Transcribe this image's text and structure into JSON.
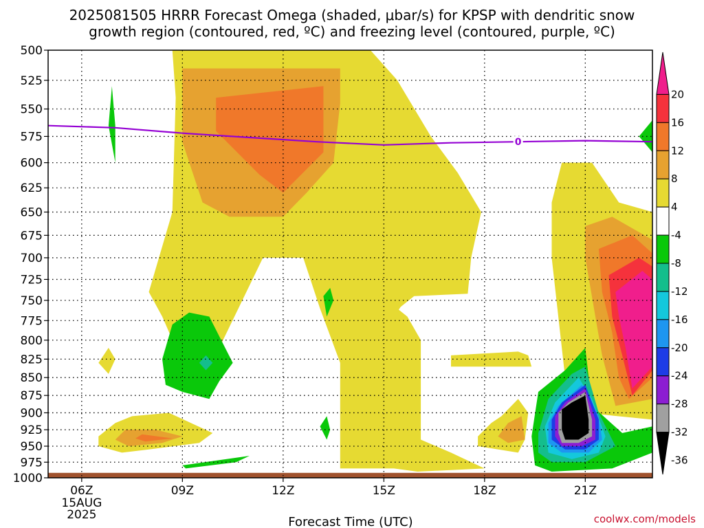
{
  "chart_data": {
    "type": "heatmap",
    "title": [
      "2025081505 HRRR Forecast Omega (shaded, μbar/s) for KPSP with dendritic snow",
      "growth region (contoured, red, ºC) and freezing level (contoured, purple, ºC)"
    ],
    "xlabel": "Forecast Time (UTC)",
    "ylabel": "",
    "y_scale": "log-pressure (hPa, inverted)",
    "y_ticks": [
      500,
      525,
      550,
      575,
      600,
      625,
      650,
      675,
      700,
      725,
      750,
      775,
      800,
      825,
      850,
      875,
      900,
      925,
      950,
      975,
      1000
    ],
    "y_lim": [
      1000,
      500
    ],
    "x_ticks": [
      {
        "hour": 6,
        "label": "06Z",
        "sub": [
          "15AUG",
          "2025"
        ]
      },
      {
        "hour": 9,
        "label": "09Z"
      },
      {
        "hour": 12,
        "label": "12Z"
      },
      {
        "hour": 15,
        "label": "15Z"
      },
      {
        "hour": 18,
        "label": "18Z"
      },
      {
        "hour": 21,
        "label": "21Z"
      }
    ],
    "x_lim": [
      5,
      23
    ],
    "grid": true,
    "colorbar": {
      "placement": "right",
      "labels": [
        "20",
        "16",
        "12",
        "8",
        "4",
        "-4",
        "-8",
        "-12",
        "-16",
        "-20",
        "-24",
        "-28",
        "-32",
        "-36"
      ],
      "colors": [
        "#f01e8c",
        "#f5323c",
        "#f0782a",
        "#e6a230",
        "#e6da32",
        "#ffffff",
        "#0ac80a",
        "#14be8c",
        "#14c8dc",
        "#1e96f0",
        "#1e3ce6",
        "#8c1ed2",
        "#a0a0a0",
        "#000000"
      ]
    },
    "freezing_level": {
      "label": "0",
      "color": "#9400d3",
      "points": [
        [
          5,
          565
        ],
        [
          7,
          567
        ],
        [
          9,
          572
        ],
        [
          11,
          576
        ],
        [
          13,
          580
        ],
        [
          15,
          583
        ],
        [
          17,
          581
        ],
        [
          19,
          580
        ],
        [
          21,
          579
        ],
        [
          23,
          580
        ]
      ]
    },
    "omega_regions": [
      {
        "level": "4",
        "color": "#e6da32",
        "points": [
          [
            8.7,
            500
          ],
          [
            14.6,
            500
          ],
          [
            15.4,
            525
          ],
          [
            16.4,
            575
          ],
          [
            17.2,
            610
          ],
          [
            17.9,
            650
          ],
          [
            17.6,
            700
          ],
          [
            17.5,
            742
          ],
          [
            15.9,
            745
          ],
          [
            15.5,
            758
          ],
          [
            15.3,
            770
          ],
          [
            14.3,
            790
          ],
          [
            13.7,
            830
          ],
          [
            13.1,
            760
          ],
          [
            12.6,
            700
          ],
          [
            12.0,
            700
          ],
          [
            11.4,
            700
          ],
          [
            10.1,
            810
          ],
          [
            9.4,
            840
          ],
          [
            9.0,
            830
          ],
          [
            8.4,
            770
          ],
          [
            8.0,
            740
          ],
          [
            8.7,
            650
          ],
          [
            8.8,
            540
          ]
        ]
      },
      {
        "level": "4",
        "color": "#e6da32",
        "points": [
          [
            13.7,
            780
          ],
          [
            15.4,
            760
          ],
          [
            15.7,
            770
          ],
          [
            16.1,
            800
          ],
          [
            16.1,
            940
          ],
          [
            17.0,
            960
          ],
          [
            18.0,
            985
          ],
          [
            16.0,
            990
          ],
          [
            15.3,
            985
          ],
          [
            13.7,
            985
          ]
        ]
      },
      {
        "level": "4",
        "color": "#e6da32",
        "points": [
          [
            17.0,
            835
          ],
          [
            19.4,
            835
          ],
          [
            19.3,
            820
          ],
          [
            19.0,
            815
          ],
          [
            17.0,
            820
          ]
        ]
      },
      {
        "level": "8",
        "color": "#e6a230",
        "points": [
          [
            9.0,
            515
          ],
          [
            13.7,
            515
          ],
          [
            13.7,
            545
          ],
          [
            13.5,
            600
          ],
          [
            12.7,
            630
          ],
          [
            12.0,
            655
          ],
          [
            10.4,
            655
          ],
          [
            9.6,
            640
          ],
          [
            9.0,
            580
          ]
        ]
      },
      {
        "level": "12",
        "color": "#f0782a",
        "points": [
          [
            10.0,
            540
          ],
          [
            13.2,
            530
          ],
          [
            13.2,
            590
          ],
          [
            12.0,
            630
          ],
          [
            11.3,
            612
          ],
          [
            10.0,
            570
          ]
        ]
      },
      {
        "level": "4",
        "color": "#e6da32",
        "points": [
          [
            6.5,
            935
          ],
          [
            7.0,
            915
          ],
          [
            7.5,
            905
          ],
          [
            8.6,
            900
          ],
          [
            9.9,
            930
          ],
          [
            9.5,
            945
          ],
          [
            8.0,
            955
          ],
          [
            7.2,
            960
          ],
          [
            6.5,
            950
          ]
        ]
      },
      {
        "level": "8",
        "color": "#e6a230",
        "points": [
          [
            7.0,
            940
          ],
          [
            7.3,
            925
          ],
          [
            8.2,
            925
          ],
          [
            9.0,
            935
          ],
          [
            8.4,
            945
          ],
          [
            7.4,
            950
          ]
        ]
      },
      {
        "level": "12",
        "color": "#f0782a",
        "points": [
          [
            7.6,
            938
          ],
          [
            7.8,
            932
          ],
          [
            8.7,
            938
          ],
          [
            7.9,
            943
          ]
        ]
      },
      {
        "level": "4",
        "color": "#e6da32",
        "points": [
          [
            6.5,
            830
          ],
          [
            6.8,
            810
          ],
          [
            7.0,
            825
          ],
          [
            6.8,
            845
          ]
        ]
      },
      {
        "level": "-4",
        "color": "#0ac80a",
        "points": [
          [
            6.9,
            530
          ],
          [
            7.0,
            565
          ],
          [
            7.0,
            600
          ],
          [
            6.8,
            565
          ]
        ]
      },
      {
        "level": "-4",
        "color": "#0ac80a",
        "points": [
          [
            8.4,
            825
          ],
          [
            8.7,
            780
          ],
          [
            9.2,
            765
          ],
          [
            9.8,
            770
          ],
          [
            10.5,
            830
          ],
          [
            10.1,
            855
          ],
          [
            9.8,
            880
          ],
          [
            9.0,
            870
          ],
          [
            8.5,
            860
          ]
        ]
      },
      {
        "level": "-8",
        "color": "#14be8c",
        "points": [
          [
            9.5,
            830
          ],
          [
            9.7,
            820
          ],
          [
            9.9,
            830
          ],
          [
            9.7,
            840
          ]
        ]
      },
      {
        "level": "-4",
        "color": "#0ac80a",
        "points": [
          [
            13.2,
            745
          ],
          [
            13.4,
            735
          ],
          [
            13.5,
            750
          ],
          [
            13.3,
            770
          ]
        ]
      },
      {
        "level": "-4",
        "color": "#0ac80a",
        "points": [
          [
            13.1,
            920
          ],
          [
            13.3,
            905
          ],
          [
            13.4,
            925
          ],
          [
            13.3,
            940
          ]
        ]
      },
      {
        "level": "-4",
        "color": "#0ac80a",
        "points": [
          [
            9.0,
            980
          ],
          [
            11.0,
            965
          ],
          [
            10.6,
            975
          ],
          [
            9.1,
            985
          ]
        ]
      },
      {
        "level": "4",
        "color": "#e6da32",
        "points": [
          [
            20.3,
            600
          ],
          [
            21.2,
            600
          ],
          [
            22.0,
            640
          ],
          [
            23.0,
            650
          ],
          [
            23.0,
            910
          ],
          [
            21.0,
            900
          ],
          [
            20.6,
            880
          ],
          [
            20.4,
            850
          ],
          [
            20.0,
            700
          ],
          [
            20.0,
            640
          ]
        ]
      },
      {
        "level": "8",
        "color": "#e6a230",
        "points": [
          [
            21.0,
            665
          ],
          [
            21.8,
            655
          ],
          [
            23.0,
            680
          ],
          [
            23.0,
            880
          ],
          [
            21.9,
            890
          ],
          [
            21.5,
            820
          ],
          [
            21.3,
            770
          ],
          [
            21.0,
            700
          ]
        ]
      },
      {
        "level": "12",
        "color": "#f0782a",
        "points": [
          [
            21.4,
            690
          ],
          [
            22.4,
            675
          ],
          [
            23.0,
            695
          ],
          [
            23.0,
            850
          ],
          [
            22.3,
            880
          ],
          [
            22.0,
            850
          ],
          [
            21.8,
            790
          ],
          [
            21.5,
            740
          ]
        ]
      },
      {
        "level": "16",
        "color": "#f5323c",
        "points": [
          [
            21.7,
            720
          ],
          [
            22.6,
            700
          ],
          [
            23.0,
            710
          ],
          [
            23.0,
            840
          ],
          [
            22.4,
            875
          ],
          [
            22.1,
            820
          ],
          [
            21.8,
            770
          ]
        ]
      },
      {
        "level": "20",
        "color": "#f01e8c",
        "points": [
          [
            21.9,
            740
          ],
          [
            22.7,
            715
          ],
          [
            23.0,
            725
          ],
          [
            23.0,
            835
          ],
          [
            22.4,
            865
          ],
          [
            22.2,
            810
          ],
          [
            22.0,
            770
          ]
        ]
      },
      {
        "level": "4",
        "color": "#e6da32",
        "points": [
          [
            17.8,
            935
          ],
          [
            18.2,
            915
          ],
          [
            18.5,
            905
          ],
          [
            19.0,
            880
          ],
          [
            19.3,
            900
          ],
          [
            19.2,
            940
          ],
          [
            19.0,
            960
          ],
          [
            17.8,
            950
          ]
        ]
      },
      {
        "level": "8",
        "color": "#e6a230",
        "points": [
          [
            18.4,
            935
          ],
          [
            18.7,
            915
          ],
          [
            19.1,
            905
          ],
          [
            19.2,
            940
          ],
          [
            18.7,
            945
          ]
        ]
      },
      {
        "level": "-4",
        "color": "#0ac80a",
        "points": [
          [
            19.4,
            935
          ],
          [
            19.6,
            870
          ],
          [
            20.4,
            840
          ],
          [
            21.0,
            810
          ],
          [
            21.2,
            890
          ],
          [
            22.1,
            930
          ],
          [
            23.0,
            920
          ],
          [
            23.0,
            960
          ],
          [
            21.8,
            985
          ],
          [
            20.0,
            990
          ],
          [
            19.5,
            980
          ]
        ]
      },
      {
        "level": "-8",
        "color": "#14be8c",
        "points": [
          [
            19.6,
            930
          ],
          [
            19.9,
            880
          ],
          [
            20.6,
            845
          ],
          [
            21.0,
            835
          ],
          [
            21.4,
            900
          ],
          [
            21.9,
            950
          ],
          [
            21.0,
            975
          ],
          [
            20.0,
            975
          ],
          [
            19.6,
            960
          ]
        ]
      },
      {
        "level": "-12",
        "color": "#14c8dc",
        "points": [
          [
            19.8,
            920
          ],
          [
            20.1,
            885
          ],
          [
            20.8,
            850
          ],
          [
            21.2,
            880
          ],
          [
            21.6,
            935
          ],
          [
            21.4,
            960
          ],
          [
            20.6,
            970
          ],
          [
            19.9,
            960
          ]
        ]
      },
      {
        "level": "-16",
        "color": "#1e96f0",
        "points": [
          [
            19.9,
            915
          ],
          [
            20.2,
            890
          ],
          [
            20.9,
            860
          ],
          [
            21.4,
            905
          ],
          [
            21.5,
            940
          ],
          [
            21.1,
            960
          ],
          [
            20.3,
            960
          ],
          [
            19.9,
            945
          ]
        ]
      },
      {
        "level": "-20",
        "color": "#1e3ce6",
        "points": [
          [
            20.0,
            910
          ],
          [
            20.3,
            885
          ],
          [
            21.0,
            860
          ],
          [
            21.4,
            910
          ],
          [
            21.4,
            940
          ],
          [
            21.0,
            955
          ],
          [
            20.4,
            955
          ],
          [
            20.0,
            940
          ]
        ]
      },
      {
        "level": "-24",
        "color": "#8c1ed2",
        "points": [
          [
            20.1,
            905
          ],
          [
            20.4,
            885
          ],
          [
            21.0,
            865
          ],
          [
            21.3,
            910
          ],
          [
            21.3,
            940
          ],
          [
            20.9,
            950
          ],
          [
            20.3,
            950
          ],
          [
            20.1,
            935
          ]
        ]
      },
      {
        "level": "-32",
        "color": "#a0a0a0",
        "points": [
          [
            20.2,
            900
          ],
          [
            20.5,
            885
          ],
          [
            21.0,
            870
          ],
          [
            21.2,
            910
          ],
          [
            21.2,
            935
          ],
          [
            20.8,
            945
          ],
          [
            20.3,
            945
          ],
          [
            20.2,
            930
          ]
        ]
      },
      {
        "level": "-36",
        "color": "#000000",
        "points": [
          [
            20.3,
            895
          ],
          [
            20.6,
            885
          ],
          [
            21.0,
            875
          ],
          [
            21.1,
            910
          ],
          [
            21.1,
            930
          ],
          [
            20.8,
            940
          ],
          [
            20.4,
            940
          ],
          [
            20.3,
            925
          ]
        ]
      },
      {
        "level": "-4",
        "color": "#0ac80a",
        "points": [
          [
            22.6,
            575
          ],
          [
            23.0,
            560
          ],
          [
            23.0,
            590
          ]
        ]
      }
    ],
    "surface": {
      "color": "#a0522d",
      "pressure": 992
    }
  },
  "watermark": "coolwx.com/models"
}
